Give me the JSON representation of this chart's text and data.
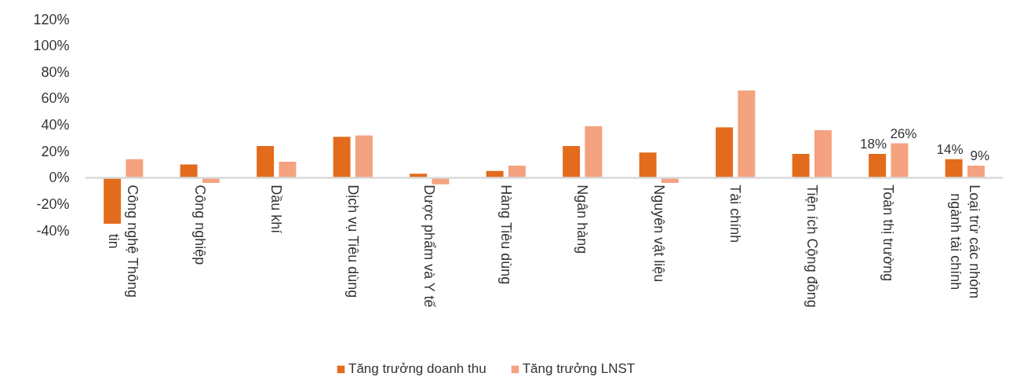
{
  "chart_data": {
    "type": "bar",
    "categories": [
      "Công nghệ Thông tin",
      "Công nghiệp",
      "Dầu khí",
      "Dịch vụ Tiêu dùng",
      "Dược phẩm và Y tế",
      "Hàng Tiêu dùng",
      "Ngân hàng",
      "Nguyên vật liệu",
      "Tài chính",
      "Tiện ích Cộng đồng",
      "Toàn thị trường",
      "Loại trừ các nhóm ngành tài chính"
    ],
    "series": [
      {
        "name": "Tăng trưởng doanh thu",
        "color": "#e26b1c",
        "values": [
          -35,
          10,
          24,
          31,
          3,
          5,
          24,
          19,
          38,
          18,
          18,
          14
        ],
        "value_labels": [
          null,
          null,
          null,
          null,
          null,
          null,
          null,
          null,
          null,
          null,
          "18%",
          "14%"
        ]
      },
      {
        "name": "Tăng trưởng LNST",
        "color": "#f4a27f",
        "values": [
          14,
          -4,
          12,
          32,
          -5,
          9,
          39,
          -4,
          66,
          36,
          26,
          9
        ],
        "value_labels": [
          null,
          null,
          null,
          null,
          null,
          null,
          null,
          null,
          null,
          null,
          "26%",
          "9%"
        ]
      }
    ],
    "ylim": [
      -40,
      120
    ],
    "yticks": [
      {
        "value": -40,
        "label": "-40%"
      },
      {
        "value": -20,
        "label": "-20%"
      },
      {
        "value": 0,
        "label": "0%"
      },
      {
        "value": 20,
        "label": "20%"
      },
      {
        "value": 40,
        "label": "40%"
      },
      {
        "value": 60,
        "label": "60%"
      },
      {
        "value": 80,
        "label": "80%"
      },
      {
        "value": 100,
        "label": "100%"
      },
      {
        "value": 120,
        "label": "120%"
      }
    ],
    "grid": false,
    "legend": "bottom"
  }
}
